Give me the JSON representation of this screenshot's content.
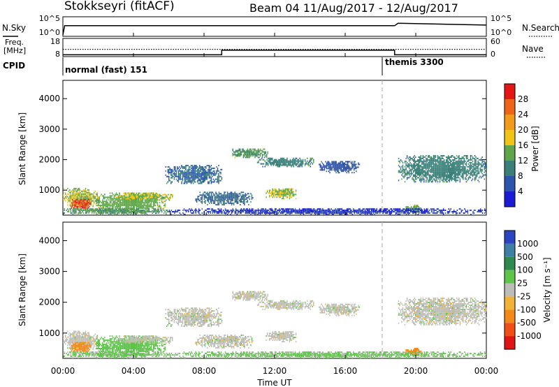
{
  "header": {
    "station": "Stokkseyri (fitACF)",
    "beam_date": "Beam 04 11/Aug/2017 - 12/Aug/2017"
  },
  "noise_panel": {
    "left_label": "N.Sky",
    "right_label": "N.Search",
    "left_ticks": [
      "10^5",
      "10^0"
    ],
    "right_ticks": [
      "10^5",
      "10^0"
    ]
  },
  "freq_panel": {
    "left_label_line1": "Freq.",
    "left_label_line2": "[MHz]",
    "right_label": "Nave",
    "left_ticks": [
      "18",
      "8"
    ],
    "right_ticks": [
      "60",
      "0"
    ]
  },
  "cpid": {
    "label": "CPID",
    "mode1": "normal (fast) 151",
    "mode2": "themis 3300",
    "change_hour": 18.1
  },
  "x_axis": {
    "label": "Time UT",
    "ticks": [
      "00:00",
      "04:00",
      "08:00",
      "12:00",
      "16:00",
      "20:00",
      "00:00"
    ],
    "tick_hours": [
      0,
      4,
      8,
      12,
      16,
      20,
      24
    ]
  },
  "y_axis": {
    "label": "Slant Range [km]",
    "ticks": [
      "1000",
      "2000",
      "3000",
      "4000"
    ],
    "tick_values": [
      1000,
      2000,
      3000,
      4000
    ]
  },
  "power_scale": {
    "label": "Power [dB]",
    "ticks": [
      "4",
      "8",
      "12",
      "16",
      "20",
      "24",
      "28"
    ],
    "colors": [
      "#1b1bd6",
      "#2e55ad",
      "#3a7f78",
      "#5fa64a",
      "#f2c418",
      "#f29a1a",
      "#f06418",
      "#e51515"
    ]
  },
  "velocity_scale": {
    "label": "Velocity [m s⁻¹]",
    "ticks": [
      "1000",
      "500",
      "100",
      "25",
      "-25",
      "-100",
      "-500",
      "-1000"
    ],
    "colors": [
      "#2b45c0",
      "#3d7fa6",
      "#2f8a4e",
      "#5ec54a",
      "#bdbdb8",
      "#f2b23a",
      "#f28a1a",
      "#f05018",
      "#e01414"
    ]
  },
  "chart_data": {
    "type": "heatmap",
    "title": "Stokkseyri (fitACF)",
    "xlabel": "Time UT",
    "ylabel": "Slant Range [km]",
    "xlim_hours": [
      0,
      24
    ],
    "ylim_km": [
      180,
      4600
    ],
    "panels": [
      "Power [dB]",
      "Velocity [m s⁻¹]"
    ],
    "scatter_regions": [
      {
        "t0": 0.0,
        "t1": 2.0,
        "r0": 400,
        "r1": 1050,
        "power": 16,
        "vel": 0
      },
      {
        "t0": 0.4,
        "t1": 1.6,
        "r0": 350,
        "r1": 700,
        "power": 28,
        "vel": -400
      },
      {
        "t0": 1.8,
        "t1": 5.8,
        "r0": 250,
        "r1": 900,
        "power": 14,
        "vel": 60
      },
      {
        "t0": 3.0,
        "t1": 6.2,
        "r0": 650,
        "r1": 900,
        "power": 16,
        "vel": 0
      },
      {
        "t0": 0.0,
        "t1": 6.0,
        "r0": 180,
        "r1": 400,
        "power": 12,
        "vel": 40
      },
      {
        "t0": 5.8,
        "t1": 9.0,
        "r0": 1200,
        "r1": 1800,
        "power": 8,
        "vel": 0
      },
      {
        "t0": 7.5,
        "t1": 10.8,
        "r0": 500,
        "r1": 950,
        "power": 8,
        "vel": 0
      },
      {
        "t0": 9.6,
        "t1": 11.6,
        "r0": 2050,
        "r1": 2350,
        "power": 12,
        "vel": 0
      },
      {
        "t0": 11.0,
        "t1": 14.2,
        "r0": 1750,
        "r1": 2050,
        "power": 10,
        "vel": 0
      },
      {
        "t0": 11.5,
        "t1": 13.2,
        "r0": 700,
        "r1": 1050,
        "power": 16,
        "vel": 0
      },
      {
        "t0": 14.5,
        "t1": 16.8,
        "r0": 1550,
        "r1": 1950,
        "power": 6,
        "vel": 0
      },
      {
        "t0": 19.0,
        "t1": 24.0,
        "r0": 1250,
        "r1": 2150,
        "power": 10,
        "vel": 0
      },
      {
        "t0": 19.3,
        "t1": 20.4,
        "r0": 250,
        "r1": 500,
        "power": 14,
        "vel": -300
      },
      {
        "t0": 6.0,
        "t1": 24.0,
        "r0": 180,
        "r1": 380,
        "power": 4,
        "vel": 40
      }
    ],
    "freq_mhz": [
      {
        "t0": 0.0,
        "t1": 9.0,
        "value": 9.0
      },
      {
        "t0": 9.0,
        "t1": 18.8,
        "value": 11.5
      },
      {
        "t0": 18.8,
        "t1": 24.0,
        "value": 9.0
      }
    ],
    "nave": [
      {
        "t0": 0.0,
        "t1": 18.8,
        "value": 24
      },
      {
        "t0": 18.8,
        "t1": 24.0,
        "value": 24
      }
    ],
    "noise_sky_log10": [
      {
        "t": 0.0,
        "v": 0.0
      },
      {
        "t": 0.1,
        "v": 3.0
      },
      {
        "t": 18.8,
        "v": 3.0
      },
      {
        "t": 19.0,
        "v": 3.8
      },
      {
        "t": 24.0,
        "v": 3.2
      }
    ]
  }
}
